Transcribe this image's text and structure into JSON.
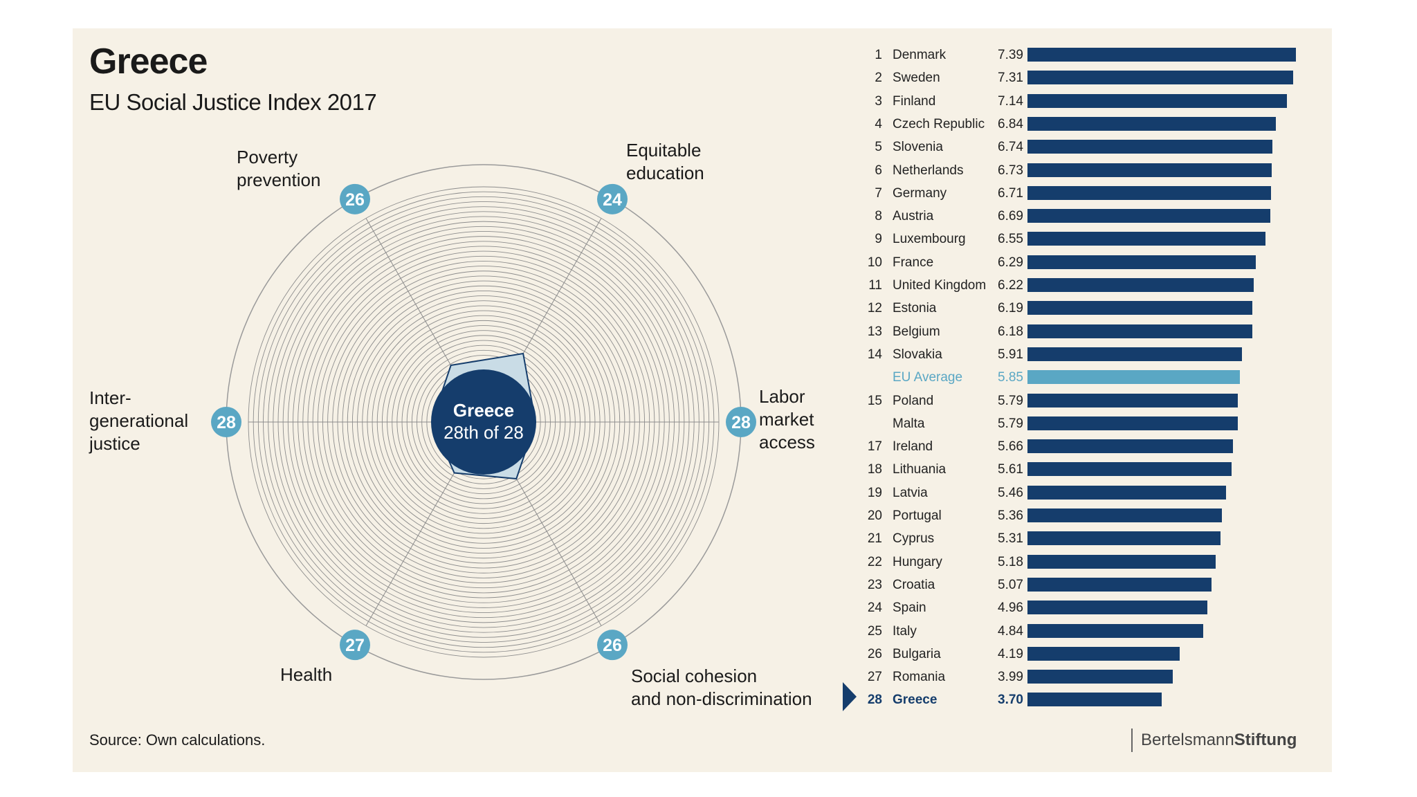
{
  "chart_data": [
    {
      "type": "radar",
      "title": "Greece",
      "subtitle": "EU Social Justice Index 2017",
      "center_label": [
        "Greece",
        "28th of 28"
      ],
      "rank_range": [
        1,
        28
      ],
      "dimensions": [
        {
          "name": "Poverty prevention",
          "label_lines": [
            "Poverty",
            "prevention"
          ],
          "rank": 26
        },
        {
          "name": "Equitable education",
          "label_lines": [
            "Equitable",
            "education"
          ],
          "rank": 24
        },
        {
          "name": "Labor market access",
          "label_lines": [
            "Labor",
            "market",
            "access"
          ],
          "rank": 28
        },
        {
          "name": "Social cohesion and non-discrimination",
          "label_lines": [
            "Social cohesion",
            "and non-discrimination"
          ],
          "rank": 26
        },
        {
          "name": "Health",
          "label_lines": [
            "Health"
          ],
          "rank": 27
        },
        {
          "name": "Inter-generational justice",
          "label_lines": [
            "Inter-",
            "generational",
            "justice"
          ],
          "rank": 28
        }
      ]
    },
    {
      "type": "bar",
      "orientation": "horizontal",
      "xlim": [
        0,
        7.39
      ],
      "rows": [
        {
          "rank": "1",
          "country": "Denmark",
          "value": 7.39
        },
        {
          "rank": "2",
          "country": "Sweden",
          "value": 7.31
        },
        {
          "rank": "3",
          "country": "Finland",
          "value": 7.14
        },
        {
          "rank": "4",
          "country": "Czech Republic",
          "value": 6.84
        },
        {
          "rank": "5",
          "country": "Slovenia",
          "value": 6.74
        },
        {
          "rank": "6",
          "country": "Netherlands",
          "value": 6.73
        },
        {
          "rank": "7",
          "country": "Germany",
          "value": 6.71
        },
        {
          "rank": "8",
          "country": "Austria",
          "value": 6.69
        },
        {
          "rank": "9",
          "country": "Luxembourg",
          "value": 6.55
        },
        {
          "rank": "10",
          "country": "France",
          "value": 6.29
        },
        {
          "rank": "11",
          "country": "United Kingdom",
          "value": 6.22
        },
        {
          "rank": "12",
          "country": "Estonia",
          "value": 6.19
        },
        {
          "rank": "13",
          "country": "Belgium",
          "value": 6.18
        },
        {
          "rank": "14",
          "country": "Slovakia",
          "value": 5.91
        },
        {
          "rank": "",
          "country": "EU Average",
          "value": 5.85,
          "style": "average"
        },
        {
          "rank": "15",
          "country": "Poland",
          "value": 5.79
        },
        {
          "rank": "",
          "country": "Malta",
          "value": 5.79
        },
        {
          "rank": "17",
          "country": "Ireland",
          "value": 5.66
        },
        {
          "rank": "18",
          "country": "Lithuania",
          "value": 5.61
        },
        {
          "rank": "19",
          "country": "Latvia",
          "value": 5.46
        },
        {
          "rank": "20",
          "country": "Portugal",
          "value": 5.36
        },
        {
          "rank": "21",
          "country": "Cyprus",
          "value": 5.31
        },
        {
          "rank": "22",
          "country": "Hungary",
          "value": 5.18
        },
        {
          "rank": "23",
          "country": "Croatia",
          "value": 5.07
        },
        {
          "rank": "24",
          "country": "Spain",
          "value": 4.96
        },
        {
          "rank": "25",
          "country": "Italy",
          "value": 4.84
        },
        {
          "rank": "26",
          "country": "Bulgaria",
          "value": 4.19
        },
        {
          "rank": "27",
          "country": "Romania",
          "value": 3.99
        },
        {
          "rank": "28",
          "country": "Greece",
          "value": 3.7,
          "style": "highlight"
        }
      ]
    }
  ],
  "source": "Source: Own calculations.",
  "brand": {
    "part1": "Bertelsmann",
    "part2": "Stiftung"
  },
  "colors": {
    "navy": "#153d6c",
    "teal": "#5aa7c4",
    "background": "#f6f1e6"
  }
}
